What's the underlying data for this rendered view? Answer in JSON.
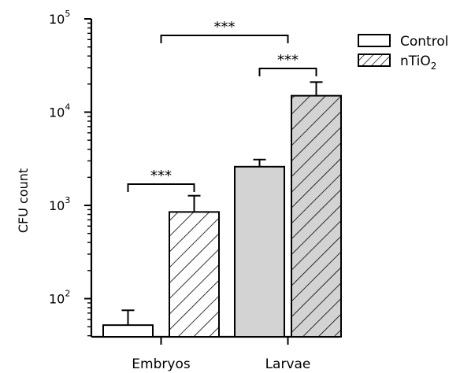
{
  "chart_data": {
    "type": "bar",
    "title": "",
    "xlabel": "",
    "ylabel": "CFU count",
    "y_scale": "log",
    "ylim": [
      40,
      100000
    ],
    "y_ticks": [
      {
        "value": 100,
        "base": "10",
        "exp": "2"
      },
      {
        "value": 1000,
        "base": "10",
        "exp": "3"
      },
      {
        "value": 10000,
        "base": "10",
        "exp": "4"
      },
      {
        "value": 100000,
        "base": "10",
        "exp": "5"
      }
    ],
    "grid": false,
    "legend_position": "top-right",
    "categories": [
      "Embryos",
      "Larvae"
    ],
    "series": [
      {
        "name_main": "Control",
        "name_sub": "",
        "pattern": "none",
        "colors": [
          "#ffffff",
          "#d3d3d3"
        ],
        "values": [
          52,
          2600
        ],
        "errors_upper": [
          75,
          3100
        ]
      },
      {
        "name_main": "nTiO",
        "name_sub": "2",
        "pattern": "hatch",
        "colors": [
          "#ffffff",
          "#d3d3d3"
        ],
        "values": [
          850,
          15000
        ],
        "errors_upper": [
          1270,
          21000
        ]
      }
    ],
    "significance": [
      {
        "label": "***",
        "between": [
          [
            0,
            0
          ],
          [
            0,
            1
          ]
        ]
      },
      {
        "label": "***",
        "between": [
          [
            1,
            0
          ],
          [
            1,
            1
          ]
        ]
      },
      {
        "label": "***",
        "between": [
          [
            0,
            "group"
          ],
          [
            1,
            "group"
          ]
        ]
      }
    ]
  }
}
